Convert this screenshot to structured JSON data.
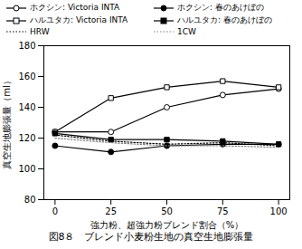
{
  "chart_data": {
    "type": "line",
    "caption": "図8８　ブレンド小麦粉生地の真空生地膨張量",
    "xlabel": "強力粉、超強力粉ブレンド割合（%）",
    "ylabel": "真空生地膨張量（ml）",
    "x": [
      0,
      25,
      50,
      75,
      100
    ],
    "series": [
      {
        "name": "ホクシン: Victoria INTA",
        "color": "black",
        "marker": "circle-open",
        "line_style": "solid",
        "values": [
          124,
          124,
          140,
          148,
          152
        ]
      },
      {
        "name": "ホクシン: 春のあけぼの",
        "color": "black",
        "marker": "circle",
        "line_style": "solid",
        "values": [
          115,
          111,
          115,
          116,
          116
        ]
      },
      {
        "name": "ハルユタカ: Victoria INTA",
        "color": "black",
        "marker": "square-open",
        "line_style": "solid",
        "values": [
          124,
          146,
          153,
          157,
          153
        ]
      },
      {
        "name": "ハルユタカ: 春のあけぼの",
        "color": "black",
        "marker": "square",
        "line_style": "solid",
        "values": [
          123,
          119,
          119,
          118,
          116
        ]
      },
      {
        "name": "HRW",
        "color": "black",
        "marker": "none",
        "line_style": "dotted",
        "values": [
          122,
          118,
          116,
          117,
          115
        ]
      },
      {
        "name": "1CW",
        "color": "gray",
        "marker": "none",
        "line_style": "dotted",
        "values": [
          120,
          117,
          115,
          115,
          114
        ]
      }
    ],
    "xlim": [
      -5,
      105
    ],
    "xticks": [
      0,
      25,
      50,
      75,
      100
    ],
    "ylim": [
      80,
      180
    ],
    "yticks": [
      80,
      100,
      120,
      140,
      160,
      180
    ],
    "grid": false,
    "legend": "top"
  }
}
